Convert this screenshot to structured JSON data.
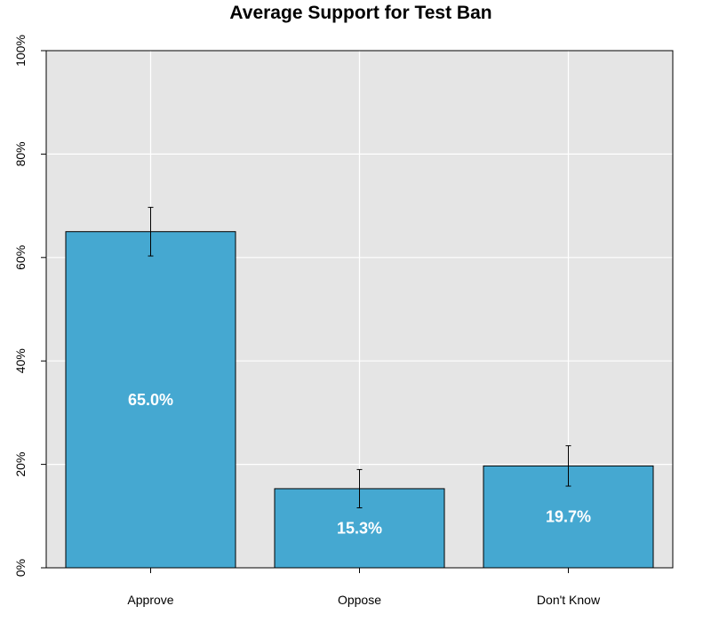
{
  "chart_data": {
    "type": "bar",
    "title": "Average Support for Test Ban",
    "xlabel": "",
    "ylabel": "",
    "categories": [
      "Approve",
      "Oppose",
      "Don't Know"
    ],
    "values": [
      65.0,
      15.3,
      19.7
    ],
    "error_low": [
      60.3,
      11.6,
      15.8
    ],
    "error_high": [
      69.7,
      19.0,
      23.6
    ],
    "data_labels": [
      "65.0%",
      "15.3%",
      "19.7%"
    ],
    "ylim": [
      0,
      100
    ],
    "y_ticks": [
      0,
      20,
      40,
      60,
      80,
      100
    ],
    "y_tick_labels": [
      "0%",
      "20%",
      "40%",
      "60%",
      "80%",
      "100%"
    ],
    "grid": true,
    "colors": {
      "bar": "#45a8d1",
      "panel": "#e5e5e5",
      "grid": "#ffffff",
      "border": "#000000",
      "data_label": "#ffffff"
    }
  }
}
